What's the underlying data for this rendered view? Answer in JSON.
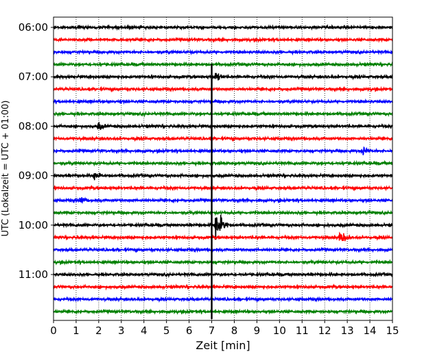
{
  "chart_data": {
    "type": "line",
    "xlabel": "Zeit  [min]",
    "ylabel": "UTC (Lokalzeit = UTC + 01:00)",
    "xlim": [
      0,
      15
    ],
    "x_ticks": [
      0,
      1,
      2,
      3,
      4,
      5,
      6,
      7,
      8,
      9,
      10,
      11,
      12,
      13,
      14,
      15
    ],
    "y_tick_labels": [
      "06:00",
      "07:00",
      "08:00",
      "09:00",
      "10:00",
      "11:00"
    ],
    "trace_interval_minutes": 15,
    "trace_start": "06:00",
    "trace_count": 24,
    "trace_colors": [
      "#000000",
      "#ff0000",
      "#0000ff",
      "#008000"
    ],
    "x_grid": "dotted",
    "events": [
      {
        "trace_start": "06:45",
        "minute": 7.0,
        "amplitude": "very large",
        "note": "spike"
      },
      {
        "trace_start": "07:00",
        "minute": 7.2,
        "amplitude": "small"
      },
      {
        "trace_start": "08:00",
        "minute": 2.0,
        "amplitude": "small"
      },
      {
        "trace_start": "08:30",
        "minute": 13.7,
        "amplitude": "small"
      },
      {
        "trace_start": "09:00",
        "minute": 1.8,
        "amplitude": "small"
      },
      {
        "trace_start": "09:30",
        "minute": 1.2,
        "amplitude": "small"
      },
      {
        "trace_start": "10:00",
        "minute": 7.2,
        "amplitude": "large",
        "note": "earthquake arrival"
      },
      {
        "trace_start": "10:15",
        "minute": 12.7,
        "amplitude": "medium"
      }
    ]
  }
}
